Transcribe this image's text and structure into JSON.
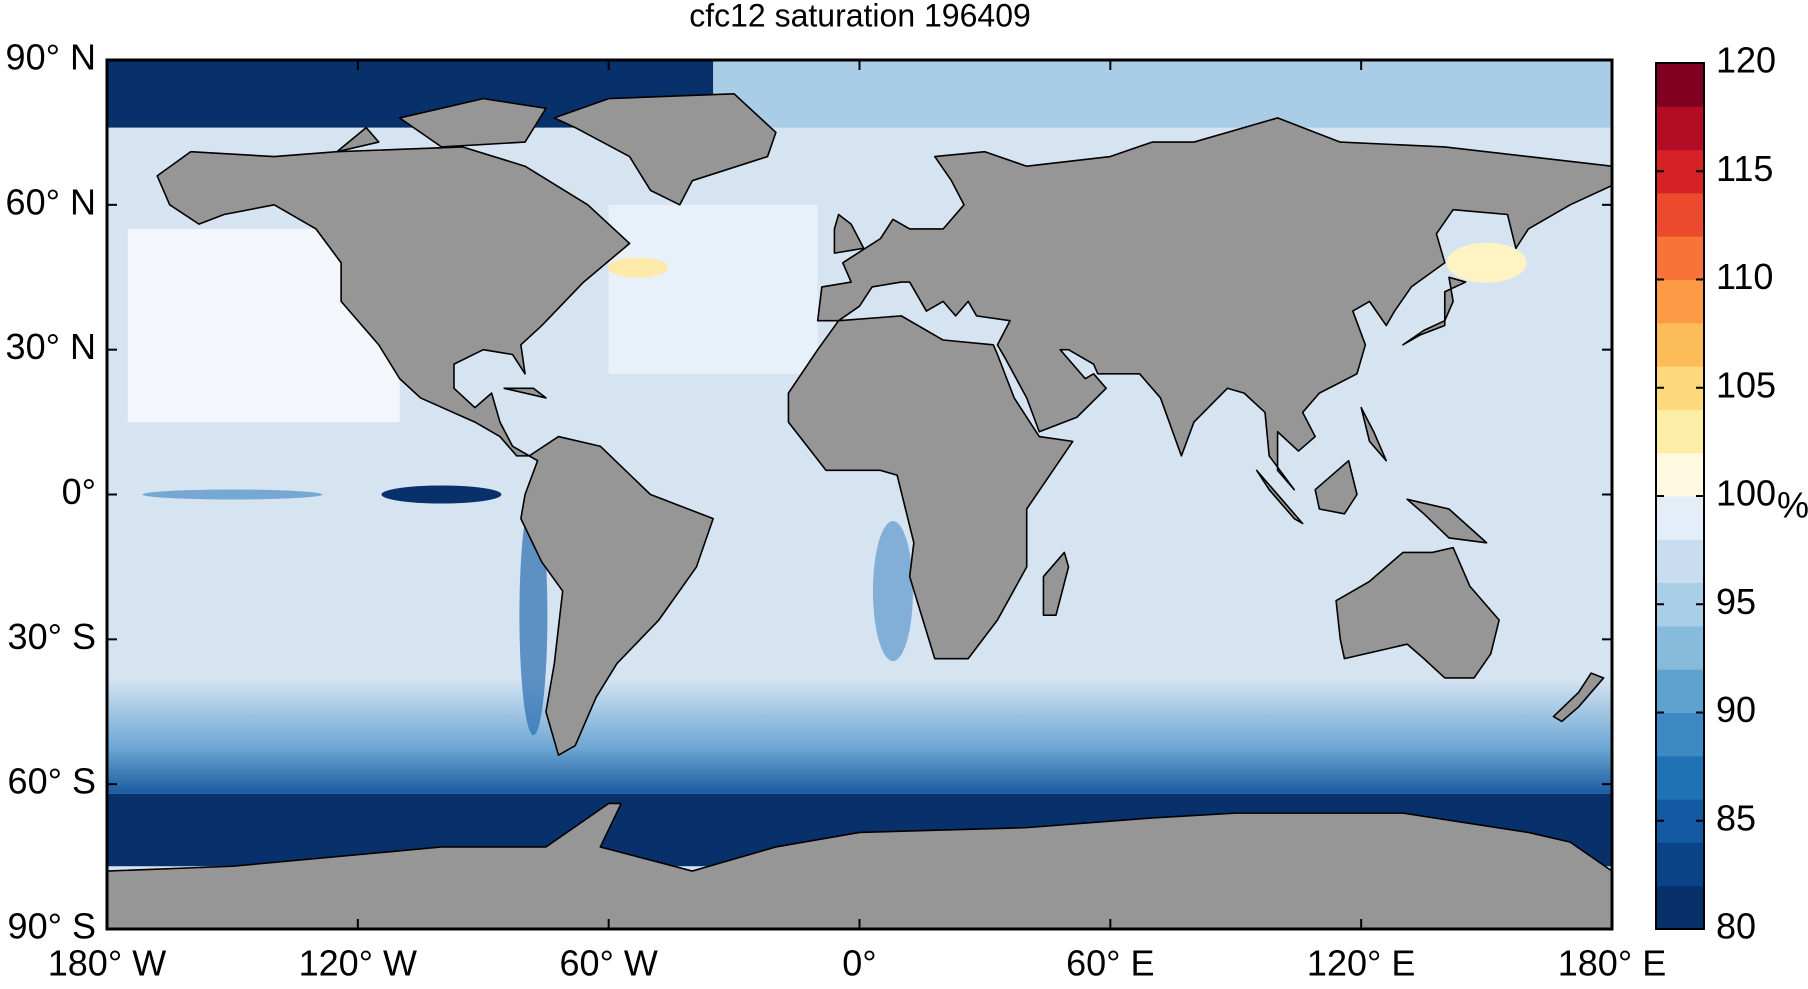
{
  "title": "cfc12 saturation 196409",
  "map": {
    "xlim": [
      -180,
      180
    ],
    "ylim": [
      -90,
      90
    ],
    "xticks": [
      {
        "value": -180,
        "label": "180° W"
      },
      {
        "value": -120,
        "label": "120° W"
      },
      {
        "value": -60,
        "label": "60° W"
      },
      {
        "value": 0,
        "label": "0°"
      },
      {
        "value": 60,
        "label": "60° E"
      },
      {
        "value": 120,
        "label": "120° E"
      },
      {
        "value": 180,
        "label": "180° E"
      }
    ],
    "yticks": [
      {
        "value": 90,
        "label": "90° N"
      },
      {
        "value": 60,
        "label": "60° N"
      },
      {
        "value": 30,
        "label": "30° N"
      },
      {
        "value": 0,
        "label": "0°"
      },
      {
        "value": -30,
        "label": "30° S"
      },
      {
        "value": -60,
        "label": "60° S"
      },
      {
        "value": -90,
        "label": "90° S"
      }
    ]
  },
  "colorbar": {
    "lim": [
      80,
      120
    ],
    "ticks": [
      80,
      85,
      90,
      95,
      100,
      105,
      110,
      115,
      120
    ],
    "label": "%",
    "colors": [
      "#08306b",
      "#0b4389",
      "#1459a3",
      "#2171b5",
      "#3d8ac3",
      "#5fa2d0",
      "#86bbdc",
      "#a9cfe6",
      "#c8def0",
      "#e4eef8",
      "#fff9e0",
      "#feeda6",
      "#fed97c",
      "#fdbc5a",
      "#fc9a45",
      "#f77337",
      "#ec4a2c",
      "#d62226",
      "#b30d26",
      "#7f0020"
    ]
  }
}
